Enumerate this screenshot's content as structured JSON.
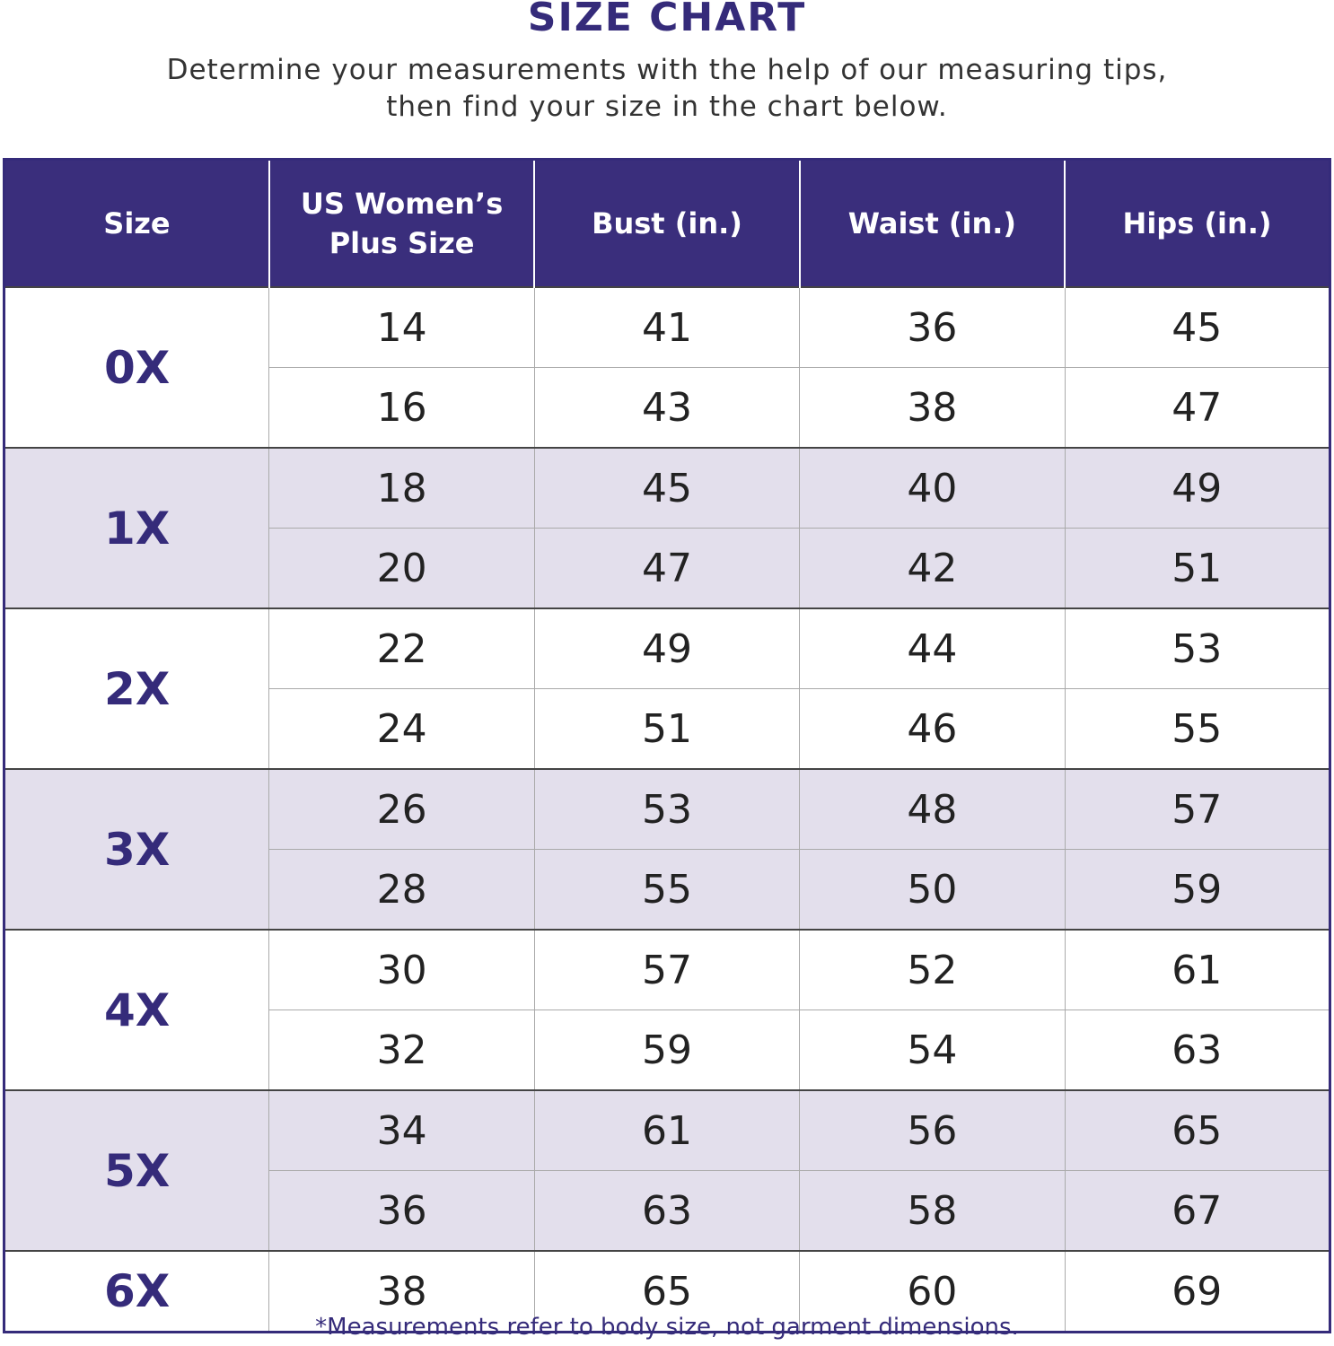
{
  "header": {
    "title": "SIZE CHART",
    "subtitle_lines": [
      "Determine your measurements with the help of our measuring tips,",
      "then find your size in the chart below."
    ]
  },
  "table": {
    "columns": [
      "Size",
      "US Women’s Plus Size",
      "Bust (in.)",
      "Waist (in.)",
      "Hips (in.)"
    ],
    "groups": [
      {
        "size": "0X",
        "rows": [
          [
            14,
            41,
            36,
            45
          ],
          [
            16,
            43,
            38,
            47
          ]
        ]
      },
      {
        "size": "1X",
        "rows": [
          [
            18,
            45,
            40,
            49
          ],
          [
            20,
            47,
            42,
            51
          ]
        ]
      },
      {
        "size": "2X",
        "rows": [
          [
            22,
            49,
            44,
            53
          ],
          [
            24,
            51,
            46,
            55
          ]
        ]
      },
      {
        "size": "3X",
        "rows": [
          [
            26,
            53,
            48,
            57
          ],
          [
            28,
            55,
            50,
            59
          ]
        ]
      },
      {
        "size": "4X",
        "rows": [
          [
            30,
            57,
            52,
            61
          ],
          [
            32,
            59,
            54,
            63
          ]
        ]
      },
      {
        "size": "5X",
        "rows": [
          [
            34,
            61,
            56,
            65
          ],
          [
            36,
            63,
            58,
            67
          ]
        ]
      },
      {
        "size": "6X",
        "rows": [
          [
            38,
            65,
            60,
            69
          ]
        ]
      }
    ]
  },
  "footnote": "*Measurements refer to body size, not garment dimensions."
}
